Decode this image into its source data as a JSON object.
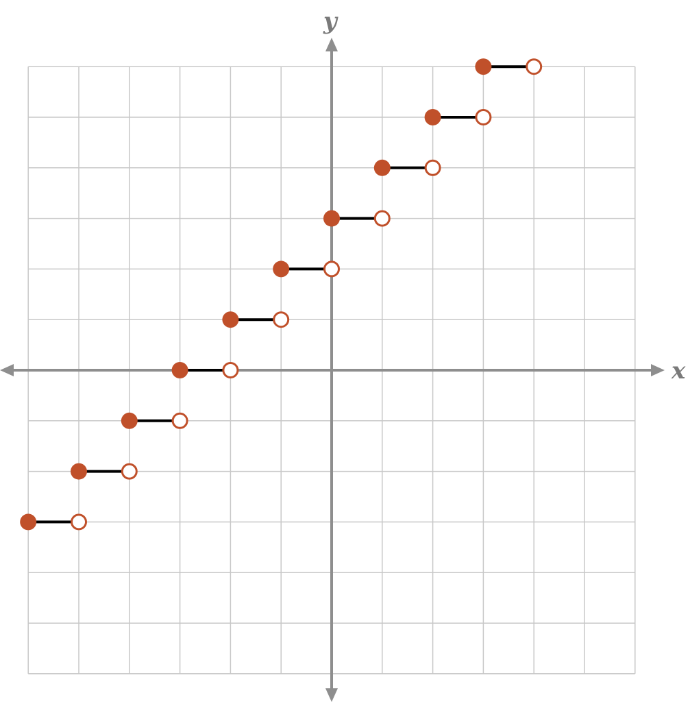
{
  "chart_data": {
    "type": "line",
    "subtype": "step-function",
    "xlabel": "x",
    "ylabel": "y",
    "xlim": [
      -6,
      6
    ],
    "ylim": [
      -6,
      6
    ],
    "grid": true,
    "tick_labels_shown": false,
    "point_color": "#c0502a",
    "segment_color": "#000000",
    "segments": [
      {
        "x_start": -6,
        "x_end": -5,
        "y": -3,
        "start": "closed",
        "end": "open"
      },
      {
        "x_start": -5,
        "x_end": -4,
        "y": -2,
        "start": "closed",
        "end": "open"
      },
      {
        "x_start": -4,
        "x_end": -3,
        "y": -1,
        "start": "closed",
        "end": "open"
      },
      {
        "x_start": -3,
        "x_end": -2,
        "y": 0,
        "start": "closed",
        "end": "open"
      },
      {
        "x_start": -2,
        "x_end": -1,
        "y": 1,
        "start": "closed",
        "end": "open"
      },
      {
        "x_start": -1,
        "x_end": 0,
        "y": 2,
        "start": "closed",
        "end": "open"
      },
      {
        "x_start": 0,
        "x_end": 1,
        "y": 3,
        "start": "closed",
        "end": "open"
      },
      {
        "x_start": 1,
        "x_end": 2,
        "y": 4,
        "start": "closed",
        "end": "open"
      },
      {
        "x_start": 2,
        "x_end": 3,
        "y": 5,
        "start": "closed",
        "end": "open"
      },
      {
        "x_start": 3,
        "x_end": 4,
        "y": 6,
        "start": "closed",
        "end": "open"
      }
    ]
  }
}
